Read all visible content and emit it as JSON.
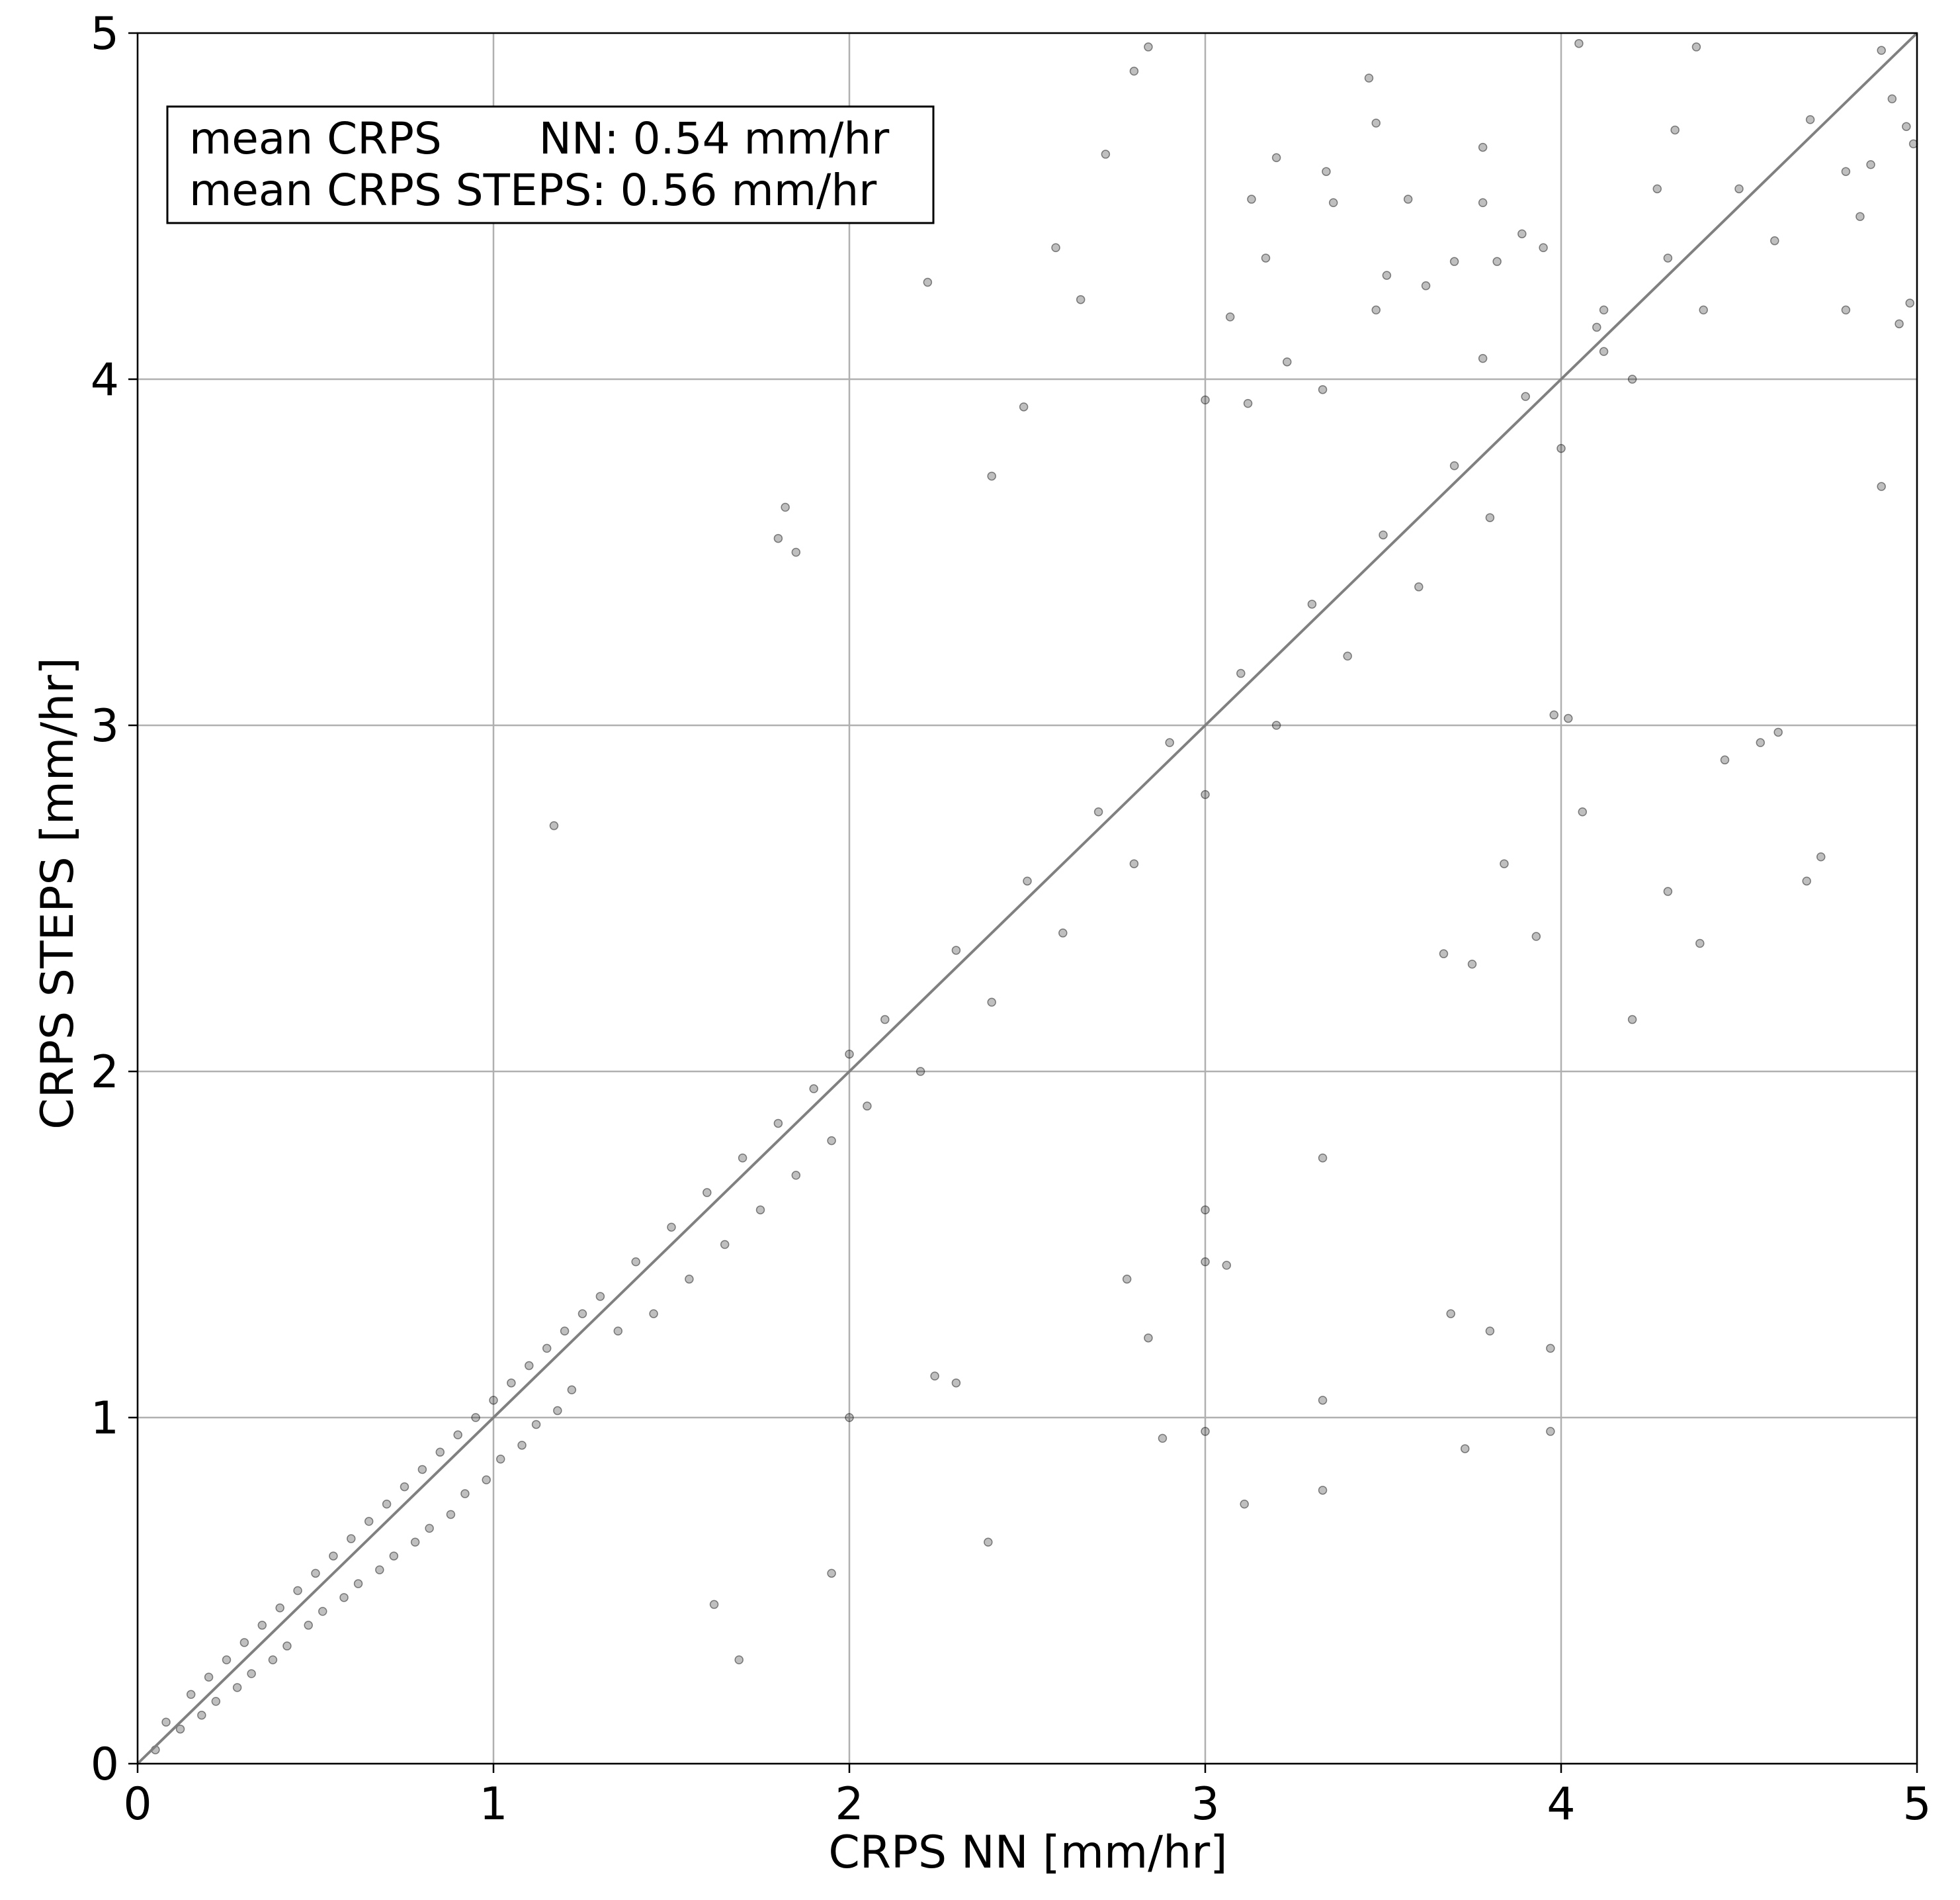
{
  "chart_data": {
    "type": "scatter",
    "title": "",
    "xlabel": "CRPS NN [mm/hr]",
    "ylabel": "CRPS STEPS [mm/hr]",
    "xlim": [
      0,
      5
    ],
    "ylim": [
      0,
      5
    ],
    "xticks": [
      "0",
      "1",
      "2",
      "3",
      "4",
      "5"
    ],
    "yticks": [
      "0",
      "1",
      "2",
      "3",
      "4",
      "5"
    ],
    "grid": true,
    "reference_line": {
      "type": "identity",
      "x": [
        0,
        5
      ],
      "y": [
        0,
        5
      ],
      "color": "#808080"
    },
    "annotation_box": {
      "placement": "top-left",
      "lines": [
        "mean CRPS       NN: 0.54 mm/hr",
        "mean CRPS STEPS: 0.56 mm/hr"
      ]
    },
    "marker_color": "#000000",
    "marker_alpha": 0.25,
    "series": [
      {
        "values_xy": [
          [
            0.05,
            0.04
          ],
          [
            0.08,
            0.12
          ],
          [
            0.12,
            0.1
          ],
          [
            0.15,
            0.2
          ],
          [
            0.18,
            0.14
          ],
          [
            0.2,
            0.25
          ],
          [
            0.22,
            0.18
          ],
          [
            0.25,
            0.3
          ],
          [
            0.28,
            0.22
          ],
          [
            0.3,
            0.35
          ],
          [
            0.32,
            0.26
          ],
          [
            0.35,
            0.4
          ],
          [
            0.38,
            0.3
          ],
          [
            0.4,
            0.45
          ],
          [
            0.42,
            0.34
          ],
          [
            0.45,
            0.5
          ],
          [
            0.48,
            0.4
          ],
          [
            0.5,
            0.55
          ],
          [
            0.52,
            0.44
          ],
          [
            0.55,
            0.6
          ],
          [
            0.58,
            0.48
          ],
          [
            0.6,
            0.65
          ],
          [
            0.62,
            0.52
          ],
          [
            0.65,
            0.7
          ],
          [
            0.68,
            0.56
          ],
          [
            0.7,
            0.75
          ],
          [
            0.72,
            0.6
          ],
          [
            0.75,
            0.8
          ],
          [
            0.78,
            0.64
          ],
          [
            0.8,
            0.85
          ],
          [
            0.82,
            0.68
          ],
          [
            0.85,
            0.9
          ],
          [
            0.88,
            0.72
          ],
          [
            0.9,
            0.95
          ],
          [
            0.92,
            0.78
          ],
          [
            0.95,
            1.0
          ],
          [
            0.98,
            0.82
          ],
          [
            1.0,
            1.05
          ],
          [
            1.02,
            0.88
          ],
          [
            1.05,
            1.1
          ],
          [
            1.08,
            0.92
          ],
          [
            1.1,
            1.15
          ],
          [
            1.12,
            0.98
          ],
          [
            1.15,
            1.2
          ],
          [
            1.18,
            1.02
          ],
          [
            1.2,
            1.25
          ],
          [
            1.22,
            1.08
          ],
          [
            1.25,
            1.3
          ],
          [
            1.3,
            1.35
          ],
          [
            1.35,
            1.25
          ],
          [
            1.4,
            1.45
          ],
          [
            1.45,
            1.3
          ],
          [
            1.5,
            1.55
          ],
          [
            1.55,
            1.4
          ],
          [
            1.6,
            1.65
          ],
          [
            1.65,
            1.5
          ],
          [
            1.7,
            1.75
          ],
          [
            1.75,
            1.6
          ],
          [
            1.8,
            1.85
          ],
          [
            1.85,
            1.7
          ],
          [
            1.9,
            1.95
          ],
          [
            1.95,
            1.8
          ],
          [
            2.0,
            2.05
          ],
          [
            2.05,
            1.9
          ],
          [
            2.1,
            2.15
          ],
          [
            2.2,
            2.0
          ],
          [
            2.3,
            2.35
          ],
          [
            2.4,
            2.2
          ],
          [
            2.5,
            2.55
          ],
          [
            2.6,
            2.4
          ],
          [
            2.7,
            2.75
          ],
          [
            2.8,
            2.6
          ],
          [
            2.9,
            2.95
          ],
          [
            3.0,
            2.8
          ],
          [
            3.1,
            3.15
          ],
          [
            3.2,
            3.0
          ],
          [
            3.3,
            3.35
          ],
          [
            3.4,
            3.2
          ],
          [
            3.5,
            3.55
          ],
          [
            3.6,
            3.4
          ],
          [
            3.7,
            3.75
          ],
          [
            3.8,
            3.6
          ],
          [
            3.9,
            3.95
          ],
          [
            4.0,
            3.8
          ],
          [
            4.1,
            4.15
          ],
          [
            4.2,
            4.0
          ],
          [
            4.3,
            4.35
          ],
          [
            4.4,
            4.2
          ],
          [
            4.5,
            4.55
          ],
          [
            4.6,
            4.4
          ],
          [
            4.7,
            4.75
          ],
          [
            4.8,
            4.6
          ],
          [
            4.9,
            4.95
          ],
          [
            1.82,
            3.63
          ],
          [
            1.8,
            3.54
          ],
          [
            1.85,
            3.5
          ],
          [
            1.17,
            2.71
          ],
          [
            2.22,
            4.28
          ],
          [
            2.72,
            4.65
          ],
          [
            2.8,
            4.89
          ],
          [
            2.84,
            4.96
          ],
          [
            3.48,
            4.74
          ],
          [
            3.46,
            4.87
          ],
          [
            4.05,
            4.97
          ],
          [
            3.97,
            0.96
          ],
          [
            4.38,
            4.96
          ],
          [
            3.73,
            0.91
          ],
          [
            3.11,
            0.75
          ],
          [
            3.33,
            0.79
          ],
          [
            3.69,
            1.3
          ],
          [
            3.8,
            1.25
          ],
          [
            3.97,
            1.2
          ],
          [
            4.9,
            3.69
          ],
          [
            4.73,
            2.62
          ],
          [
            4.39,
            2.37
          ],
          [
            4.3,
            2.52
          ],
          [
            4.2,
            2.15
          ],
          [
            2.39,
            0.64
          ],
          [
            1.95,
            0.55
          ],
          [
            1.62,
            0.46
          ],
          [
            1.69,
            0.3
          ],
          [
            2.0,
            1.0
          ],
          [
            2.24,
            1.12
          ],
          [
            2.3,
            1.1
          ],
          [
            2.78,
            1.4
          ],
          [
            2.84,
            1.23
          ],
          [
            3.0,
            1.45
          ],
          [
            3.06,
            1.44
          ],
          [
            3.33,
            1.05
          ],
          [
            3.33,
            1.75
          ],
          [
            3.0,
            0.96
          ],
          [
            3.0,
            1.6
          ],
          [
            2.88,
            0.94
          ],
          [
            4.06,
            2.75
          ],
          [
            4.69,
            2.55
          ],
          [
            4.46,
            2.9
          ],
          [
            4.56,
            2.95
          ],
          [
            4.61,
            2.98
          ],
          [
            4.8,
            4.2
          ],
          [
            4.99,
            4.68
          ],
          [
            4.98,
            4.22
          ],
          [
            4.95,
            4.16
          ],
          [
            4.84,
            4.47
          ],
          [
            4.87,
            4.62
          ],
          [
            4.93,
            4.81
          ],
          [
            4.97,
            4.73
          ],
          [
            4.12,
            4.08
          ],
          [
            3.98,
            3.03
          ],
          [
            3.67,
            2.34
          ],
          [
            3.75,
            2.31
          ],
          [
            3.84,
            2.6
          ],
          [
            3.93,
            2.39
          ],
          [
            4.02,
            3.02
          ],
          [
            3.95,
            4.38
          ],
          [
            3.78,
            4.06
          ],
          [
            2.65,
            4.23
          ],
          [
            2.58,
            4.38
          ],
          [
            2.4,
            3.72
          ],
          [
            2.49,
            3.92
          ],
          [
            3.0,
            3.94
          ],
          [
            3.07,
            4.18
          ],
          [
            3.12,
            3.93
          ],
          [
            3.23,
            4.05
          ],
          [
            3.33,
            3.97
          ],
          [
            3.17,
            4.35
          ],
          [
            3.2,
            4.64
          ],
          [
            3.13,
            4.52
          ],
          [
            3.34,
            4.6
          ],
          [
            3.36,
            4.51
          ],
          [
            3.48,
            4.2
          ],
          [
            3.51,
            4.3
          ],
          [
            3.57,
            4.52
          ],
          [
            3.62,
            4.27
          ],
          [
            3.7,
            4.34
          ],
          [
            3.78,
            4.51
          ],
          [
            3.78,
            4.67
          ],
          [
            3.82,
            4.34
          ],
          [
            3.89,
            4.42
          ],
          [
            4.12,
            4.2
          ],
          [
            4.27,
            4.55
          ],
          [
            4.32,
            4.72
          ]
        ]
      }
    ]
  }
}
